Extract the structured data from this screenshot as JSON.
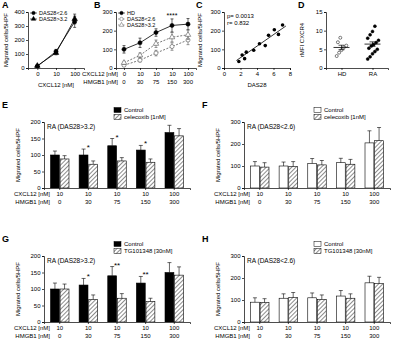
{
  "chart_data": [
    {
      "panel": "A",
      "type": "line",
      "categories": [
        "0",
        "10",
        "100"
      ],
      "x_label": "CXCL12 [nM]",
      "y_label": "Migrated cells/5HPF",
      "ylim": [
        0,
        400
      ],
      "yticks": [
        0,
        100,
        200,
        300,
        400
      ],
      "legend": "upper left",
      "series": [
        {
          "name": "DAS28<2.6",
          "color": "#000000",
          "marker": "circle",
          "line_style": "solid",
          "values": [
            12,
            118,
            330
          ],
          "errors": [
            4,
            15,
            40
          ]
        },
        {
          "name": "DAS28>3.2",
          "color": "#000000",
          "marker": "triangle",
          "line_style": "solid",
          "values": [
            16,
            108,
            350
          ],
          "errors": [
            5,
            14,
            35
          ]
        }
      ]
    },
    {
      "panel": "B",
      "type": "line",
      "category_rows": [
        {
          "label": "CXCL12 [nM]",
          "labels": [
            "0",
            "10",
            "10",
            "10",
            "100"
          ]
        },
        {
          "label": "HMGB1 [nM]",
          "labels": [
            "0",
            "30",
            "75",
            "150",
            "300"
          ]
        }
      ],
      "ylim": [
        0,
        300
      ],
      "yticks": [
        0,
        100,
        200,
        300
      ],
      "legend": "upper left",
      "series": [
        {
          "name": "HD",
          "color": "#000000",
          "marker": "circle",
          "line_style": "solid",
          "values": [
            100,
            135,
            190,
            228,
            235
          ],
          "errors": [
            20,
            25,
            20,
            35,
            30
          ]
        },
        {
          "name": "DAS28<2.6",
          "color": "#555555",
          "marker": "open-circle",
          "line_style": "dashed",
          "values": [
            15,
            42,
            80,
            115,
            150
          ],
          "errors": [
            5,
            10,
            15,
            20,
            25
          ]
        },
        {
          "name": "DAS28>3.2",
          "color": "#555555",
          "marker": "open-triangle",
          "line_style": "dashed",
          "values": [
            28,
            68,
            130,
            165,
            178
          ],
          "errors": [
            8,
            12,
            20,
            25,
            25
          ]
        }
      ],
      "annotations": [
        {
          "text": "****",
          "index": 3
        }
      ]
    },
    {
      "panel": "C",
      "type": "scatter",
      "x_label": "DAS28",
      "y_label": "Migrated cells/5HPF",
      "x": [
        1.8,
        2.2,
        2.5,
        2.7,
        3.6,
        4.3,
        5.0,
        5.4,
        6.1,
        6.6,
        7.1
      ],
      "values": [
        35,
        70,
        50,
        85,
        95,
        130,
        120,
        175,
        205,
        180,
        230
      ],
      "xlim": [
        0,
        8
      ],
      "xticks": [
        0,
        2,
        4,
        6,
        8
      ],
      "ylim": [
        0,
        300
      ],
      "yticks": [
        0,
        100,
        200,
        300
      ],
      "fit": {
        "x": [
          1.5,
          7.5
        ],
        "values": [
          40,
          225
        ]
      },
      "annotations": [
        "p= 0.0013",
        "r= 0.832"
      ]
    },
    {
      "panel": "D",
      "type": "dot",
      "categories": [
        "HD",
        "RA"
      ],
      "y_label": "rMFI CXCR4",
      "ylim": [
        0,
        15
      ],
      "yticks": [
        0,
        5,
        10,
        15
      ],
      "points": [
        [
          3.2,
          4.1,
          4.8,
          5.5,
          6.0,
          6.9,
          8.1
        ],
        [
          2.4,
          3.0,
          3.8,
          4.4,
          5.0,
          5.3,
          5.9,
          6.3,
          6.8,
          7.4,
          8.0,
          8.9,
          9.8,
          11.2
        ]
      ],
      "means": [
        5.5,
        6.4
      ],
      "errors": [
        0.6,
        0.6
      ]
    },
    {
      "panel": "E",
      "type": "bar",
      "title": "RA (DAS28>3.2)",
      "y_label": "Migrated cells/5HPF",
      "category_rows": [
        {
          "label": "CXCL12 [nM]",
          "labels": [
            "10",
            "10",
            "10",
            "10",
            "100"
          ]
        },
        {
          "label": "HMGB1 [nM]",
          "labels": [
            "0",
            "30",
            "75",
            "150",
            "300"
          ]
        }
      ],
      "ylim": [
        0,
        200
      ],
      "yticks": [
        0,
        50,
        100,
        150,
        200
      ],
      "legend": "top",
      "series": [
        {
          "name": "Control",
          "color": "#000000",
          "values": [
            100,
            100,
            128,
            115,
            168
          ],
          "errors": [
            12,
            18,
            22,
            14,
            22
          ]
        },
        {
          "name": "celecoxib [1nM]",
          "color": "#ffffff",
          "values": [
            88,
            72,
            82,
            78,
            158
          ],
          "errors": [
            10,
            10,
            10,
            10,
            22
          ]
        }
      ],
      "annotations": [
        {
          "text": "*",
          "index": 1
        },
        {
          "text": "*",
          "index": 2
        },
        {
          "text": "*",
          "index": 3
        }
      ]
    },
    {
      "panel": "F",
      "type": "bar",
      "title": "RA (DAS28<2.6)",
      "y_label": "Migrated cells/5HPF",
      "category_rows": [
        {
          "label": "CXCL12 [nM]",
          "labels": [
            "10",
            "10",
            "10",
            "10",
            "100"
          ]
        },
        {
          "label": "HMGB1 [nM]",
          "labels": [
            "0",
            "30",
            "75",
            "150",
            "300"
          ]
        }
      ],
      "ylim": [
        0,
        300
      ],
      "yticks": [
        0,
        100,
        200,
        300
      ],
      "legend": "top",
      "series": [
        {
          "name": "Control",
          "color": "#ffffff",
          "values": [
            100,
            100,
            112,
            115,
            205
          ],
          "errors": [
            20,
            18,
            22,
            20,
            55
          ]
        },
        {
          "name": "celecoxib [1nM]",
          "color": "#ffffff",
          "values": [
            95,
            98,
            105,
            108,
            215
          ],
          "errors": [
            20,
            22,
            20,
            22,
            60
          ]
        }
      ]
    },
    {
      "panel": "G",
      "type": "bar",
      "title": "RA (DAS28>3.2)",
      "y_label": "Migrated cells/5HPF",
      "category_rows": [
        {
          "label": "CXCL12 [nM]",
          "labels": [
            "10",
            "10",
            "10",
            "10",
            "100"
          ]
        },
        {
          "label": "HMGB1 [nM]",
          "labels": [
            "0",
            "30",
            "75",
            "150",
            "300"
          ]
        }
      ],
      "ylim": [
        0,
        200
      ],
      "yticks": [
        0,
        50,
        100,
        150,
        200
      ],
      "legend": "top",
      "series": [
        {
          "name": "Control",
          "color": "#000000",
          "values": [
            100,
            112,
            140,
            118,
            150
          ],
          "errors": [
            18,
            20,
            28,
            20,
            30
          ]
        },
        {
          "name": "TG101348 [30nM]",
          "color": "#ffffff",
          "values": [
            100,
            68,
            72,
            62,
            142
          ],
          "errors": [
            15,
            14,
            14,
            10,
            25
          ]
        }
      ],
      "annotations": [
        {
          "text": "*",
          "index": 1
        },
        {
          "text": "**",
          "index": 2
        },
        {
          "text": "**",
          "index": 3
        }
      ]
    },
    {
      "panel": "H",
      "type": "bar",
      "title": "RA (DAS28<2.6)",
      "y_label": "Migrated cells/5HPF",
      "category_rows": [
        {
          "label": "CXCL12 [nM]",
          "labels": [
            "10",
            "10",
            "10",
            "10",
            "100"
          ]
        },
        {
          "label": "HMGB1 [nM]",
          "labels": [
            "0",
            "30",
            "75",
            "150",
            "300"
          ]
        }
      ],
      "ylim": [
        0,
        300
      ],
      "yticks": [
        0,
        100,
        200,
        300
      ],
      "legend": "top",
      "series": [
        {
          "name": "Control",
          "color": "#ffffff",
          "values": [
            90,
            108,
            110,
            118,
            178
          ],
          "errors": [
            20,
            20,
            22,
            25,
            30
          ]
        },
        {
          "name": "TG101348 [30nM]",
          "color": "#ffffff",
          "values": [
            88,
            112,
            103,
            108,
            175
          ],
          "errors": [
            18,
            22,
            20,
            20,
            28
          ]
        }
      ]
    }
  ]
}
